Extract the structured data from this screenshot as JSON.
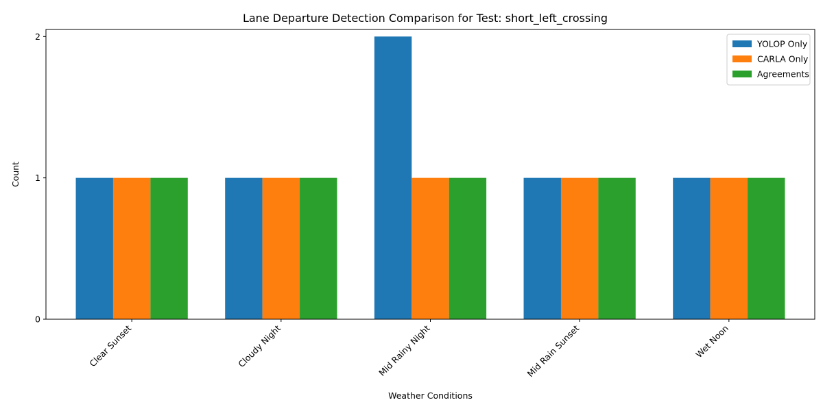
{
  "chart_data": {
    "type": "bar",
    "title": "Lane Departure Detection Comparison for Test: short_left_crossing",
    "xlabel": "Weather Conditions",
    "ylabel": "Count",
    "categories": [
      "Clear Sunset",
      "Cloudy Night",
      "Mid Rainy Night",
      "Mid Rain Sunset",
      "Wet Noon"
    ],
    "series": [
      {
        "name": "YOLOP Only",
        "color": "#1f77b4",
        "values": [
          1,
          1,
          2,
          1,
          1
        ]
      },
      {
        "name": "CARLA Only",
        "color": "#ff7f0e",
        "values": [
          1,
          1,
          1,
          1,
          1
        ]
      },
      {
        "name": "Agreements",
        "color": "#2ca02c",
        "values": [
          1,
          1,
          1,
          1,
          1
        ]
      }
    ],
    "ylim": [
      0,
      2.05
    ],
    "yticks": [
      0,
      1,
      2
    ],
    "grid": false,
    "legend": "top-right",
    "xtick_rotation": 45
  }
}
